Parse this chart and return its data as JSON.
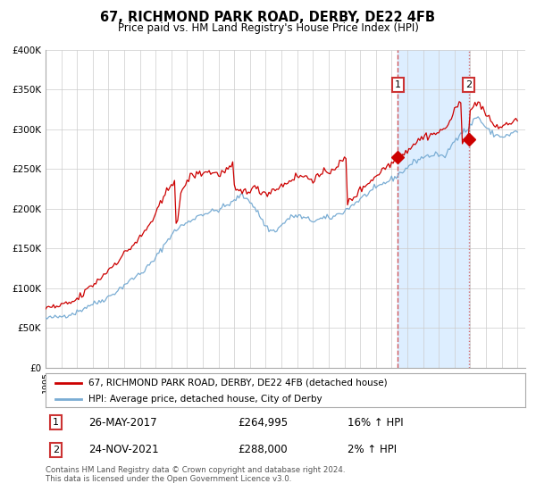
{
  "title": "67, RICHMOND PARK ROAD, DERBY, DE22 4FB",
  "subtitle": "Price paid vs. HM Land Registry's House Price Index (HPI)",
  "legend_line1": "67, RICHMOND PARK ROAD, DERBY, DE22 4FB (detached house)",
  "legend_line2": "HPI: Average price, detached house, City of Derby",
  "footer": "Contains HM Land Registry data © Crown copyright and database right 2024.\nThis data is licensed under the Open Government Licence v3.0.",
  "sale1_date": "26-MAY-2017",
  "sale1_price": "£264,995",
  "sale1_hpi": "16% ↑ HPI",
  "sale1_year": 2017.4,
  "sale1_value": 264995,
  "sale2_date": "24-NOV-2021",
  "sale2_price": "£288,000",
  "sale2_hpi": "2% ↑ HPI",
  "sale2_year": 2021.9,
  "sale2_value": 288000,
  "ylim": [
    0,
    400000
  ],
  "xlim_start": 1995.0,
  "xlim_end": 2025.5,
  "red_color": "#cc0000",
  "blue_color": "#7aadd4",
  "highlight_color": "#ddeeff",
  "grid_color": "#cccccc",
  "background_color": "#ffffff",
  "sale_box_color": "#cc3333",
  "hpi_months": [
    1995.0,
    1995.1,
    1995.2,
    1995.3,
    1995.4,
    1995.5,
    1995.6,
    1995.7,
    1995.8,
    1995.9,
    1996.0,
    1996.1,
    1996.2,
    1996.3,
    1996.4,
    1996.5,
    1996.6,
    1996.7,
    1996.8,
    1996.9,
    1997.0,
    1997.1,
    1997.2,
    1997.3,
    1997.4,
    1997.5,
    1997.6,
    1997.7,
    1997.8,
    1997.9,
    1998.0,
    1998.1,
    1998.2,
    1998.3,
    1998.4,
    1998.5,
    1998.6,
    1998.7,
    1998.8,
    1998.9,
    1999.0,
    1999.1,
    1999.2,
    1999.3,
    1999.4,
    1999.5,
    1999.6,
    1999.7,
    1999.8,
    1999.9,
    2000.0,
    2000.1,
    2000.2,
    2000.3,
    2000.4,
    2000.5,
    2000.6,
    2000.7,
    2000.8,
    2000.9,
    2001.0,
    2001.1,
    2001.2,
    2001.3,
    2001.4,
    2001.5,
    2001.6,
    2001.7,
    2001.8,
    2001.9,
    2002.0,
    2002.1,
    2002.2,
    2002.3,
    2002.4,
    2002.5,
    2002.6,
    2002.7,
    2002.8,
    2002.9,
    2003.0,
    2003.1,
    2003.2,
    2003.3,
    2003.4,
    2003.5,
    2003.6,
    2003.7,
    2003.8,
    2003.9,
    2004.0,
    2004.1,
    2004.2,
    2004.3,
    2004.4,
    2004.5,
    2004.6,
    2004.7,
    2004.8,
    2004.9,
    2005.0,
    2005.1,
    2005.2,
    2005.3,
    2005.4,
    2005.5,
    2005.6,
    2005.7,
    2005.8,
    2005.9,
    2006.0,
    2006.1,
    2006.2,
    2006.3,
    2006.4,
    2006.5,
    2006.6,
    2006.7,
    2006.8,
    2006.9,
    2007.0,
    2007.1,
    2007.2,
    2007.3,
    2007.4,
    2007.5,
    2007.6,
    2007.7,
    2007.8,
    2007.9,
    2008.0,
    2008.1,
    2008.2,
    2008.3,
    2008.4,
    2008.5,
    2008.6,
    2008.7,
    2008.8,
    2008.9,
    2009.0,
    2009.1,
    2009.2,
    2009.3,
    2009.4,
    2009.5,
    2009.6,
    2009.7,
    2009.8,
    2009.9,
    2010.0,
    2010.1,
    2010.2,
    2010.3,
    2010.4,
    2010.5,
    2010.6,
    2010.7,
    2010.8,
    2010.9,
    2011.0,
    2011.1,
    2011.2,
    2011.3,
    2011.4,
    2011.5,
    2011.6,
    2011.7,
    2011.8,
    2011.9,
    2012.0,
    2012.1,
    2012.2,
    2012.3,
    2012.4,
    2012.5,
    2012.6,
    2012.7,
    2012.8,
    2012.9,
    2013.0,
    2013.1,
    2013.2,
    2013.3,
    2013.4,
    2013.5,
    2013.6,
    2013.7,
    2013.8,
    2013.9,
    2014.0,
    2014.1,
    2014.2,
    2014.3,
    2014.4,
    2014.5,
    2014.6,
    2014.7,
    2014.8,
    2014.9,
    2015.0,
    2015.1,
    2015.2,
    2015.3,
    2015.4,
    2015.5,
    2015.6,
    2015.7,
    2015.8,
    2015.9,
    2016.0,
    2016.1,
    2016.2,
    2016.3,
    2016.4,
    2016.5,
    2016.6,
    2016.7,
    2016.8,
    2016.9,
    2017.0,
    2017.1,
    2017.2,
    2017.3,
    2017.4,
    2017.5,
    2017.6,
    2017.7,
    2017.8,
    2017.9,
    2018.0,
    2018.1,
    2018.2,
    2018.3,
    2018.4,
    2018.5,
    2018.6,
    2018.7,
    2018.8,
    2018.9,
    2019.0,
    2019.1,
    2019.2,
    2019.3,
    2019.4,
    2019.5,
    2019.6,
    2019.7,
    2019.8,
    2019.9,
    2020.0,
    2020.1,
    2020.2,
    2020.3,
    2020.4,
    2020.5,
    2020.6,
    2020.7,
    2020.8,
    2020.9,
    2021.0,
    2021.1,
    2021.2,
    2021.3,
    2021.4,
    2021.5,
    2021.6,
    2021.7,
    2021.8,
    2021.9,
    2022.0,
    2022.1,
    2022.2,
    2022.3,
    2022.4,
    2022.5,
    2022.6,
    2022.7,
    2022.8,
    2022.9,
    2023.0,
    2023.1,
    2023.2,
    2023.3,
    2023.4,
    2023.5,
    2023.6,
    2023.7,
    2023.8,
    2023.9,
    2024.0,
    2024.1,
    2024.2,
    2024.3,
    2024.4,
    2024.5,
    2024.6,
    2024.7,
    2024.8,
    2024.9,
    2025.0
  ],
  "hpi_base": [
    62000,
    61500,
    62500,
    62000,
    63000,
    63500,
    63000,
    62500,
    63500,
    64000,
    64500,
    65000,
    65500,
    66000,
    66500,
    67000,
    67500,
    68000,
    68500,
    69000,
    70000,
    71000,
    72000,
    73000,
    74500,
    75500,
    76500,
    77500,
    78500,
    79500,
    80000,
    80500,
    81000,
    82000,
    83000,
    84000,
    85000,
    86000,
    87000,
    88000,
    89000,
    90000,
    91500,
    93000,
    94500,
    96000,
    97500,
    99000,
    100500,
    102000,
    104000,
    106000,
    107000,
    108000,
    109500,
    111000,
    112500,
    114000,
    115500,
    117000,
    118000,
    119500,
    121000,
    123000,
    125000,
    127000,
    129000,
    131000,
    133000,
    135000,
    138000,
    141000,
    144000,
    147000,
    150000,
    153000,
    156000,
    159000,
    162000,
    165000,
    167000,
    169000,
    171000,
    173000,
    175000,
    177000,
    178000,
    179000,
    180000,
    181000,
    182000,
    183000,
    184500,
    186000,
    187500,
    189000,
    190000,
    191000,
    192000,
    193000,
    193500,
    194000,
    194500,
    195000,
    195500,
    196000,
    196500,
    197000,
    197500,
    198000,
    199000,
    200000,
    201000,
    202000,
    203000,
    204000,
    205000,
    206000,
    207000,
    208000,
    210000,
    212000,
    214000,
    216000,
    217000,
    216000,
    215000,
    214000,
    213000,
    212000,
    210000,
    207000,
    204000,
    201000,
    198000,
    195000,
    192000,
    188000,
    185000,
    181000,
    178000,
    176000,
    174000,
    173000,
    172000,
    172000,
    173000,
    174000,
    175000,
    177000,
    179000,
    181000,
    183000,
    185000,
    187000,
    188000,
    189000,
    190000,
    191000,
    191000,
    191000,
    191000,
    190000,
    189000,
    188000,
    188000,
    187000,
    186500,
    186000,
    185500,
    185000,
    185000,
    185500,
    186000,
    186500,
    187000,
    187500,
    188000,
    188000,
    188000,
    188000,
    188500,
    189000,
    190000,
    191000,
    192000,
    193000,
    194000,
    195000,
    196000,
    197000,
    198500,
    200000,
    201500,
    203000,
    204500,
    206000,
    207500,
    209000,
    210500,
    212000,
    213500,
    215000,
    216500,
    218000,
    219500,
    221000,
    222500,
    223000,
    224000,
    225000,
    226500,
    228000,
    229500,
    231000,
    232000,
    233000,
    234000,
    235000,
    236000,
    237000,
    238000,
    239500,
    241000,
    242500,
    244000,
    245500,
    247000,
    248500,
    250000,
    252000,
    254000,
    255500,
    257000,
    258500,
    260000,
    261000,
    262000,
    263000,
    264000,
    265000,
    265500,
    266000,
    266500,
    267000,
    267000,
    267500,
    268000,
    268500,
    269000,
    268000,
    266000,
    264000,
    264500,
    267000,
    270000,
    273000,
    276000,
    279000,
    282000,
    286000,
    289000,
    292000,
    294000,
    296000,
    297000,
    298000,
    299000,
    299500,
    300000,
    304000,
    308000,
    311000,
    314000,
    316000,
    315000,
    313000,
    310000,
    307000,
    305000,
    302000,
    300000,
    298000,
    296000,
    295000,
    294000,
    293000,
    292500,
    292000,
    291500,
    291000,
    291000,
    291500,
    292000,
    292500,
    293000,
    294000,
    295000,
    296000,
    297000,
    298000
  ],
  "price_base": [
    75000,
    74500,
    75500,
    76000,
    75500,
    76000,
    76500,
    76000,
    77000,
    77500,
    78000,
    78500,
    79000,
    79500,
    80000,
    80500,
    81500,
    82500,
    83500,
    84500,
    86000,
    87500,
    89000,
    91000,
    93000,
    95000,
    97000,
    99000,
    101000,
    103000,
    104000,
    105500,
    107000,
    109000,
    111000,
    113000,
    115000,
    117000,
    119000,
    121000,
    123000,
    125000,
    127000,
    129000,
    131000,
    133000,
    135000,
    137000,
    139000,
    141000,
    143000,
    145000,
    147000,
    149000,
    151000,
    153000,
    155000,
    157000,
    159000,
    161000,
    163000,
    165500,
    168000,
    171000,
    174000,
    177000,
    180000,
    183000,
    186000,
    189000,
    193000,
    197000,
    201000,
    205000,
    209000,
    213000,
    217000,
    221000,
    225000,
    229000,
    232000,
    234500,
    237000,
    183500,
    185000,
    202000,
    215000,
    222000,
    228500,
    232000,
    235000,
    237500,
    240000,
    241500,
    242500,
    243000,
    243500,
    244000,
    244500,
    245000,
    245500,
    246000,
    246500,
    247000,
    246500,
    246000,
    245500,
    245000,
    244500,
    244000,
    244000,
    244500,
    245000,
    246000,
    247000,
    248000,
    249500,
    251000,
    252500,
    254000,
    226000,
    224000,
    222000,
    221000,
    221000,
    221500,
    222000,
    222500,
    223000,
    224000,
    225000,
    225500,
    226000,
    225500,
    225000,
    224000,
    223000,
    222000,
    221000,
    220500,
    220000,
    220500,
    221000,
    222000,
    223000,
    224000,
    225000,
    226000,
    227000,
    228000,
    229000,
    230000,
    231000,
    232500,
    234000,
    235500,
    237000,
    238000,
    239000,
    240000,
    240500,
    241000,
    241500,
    241000,
    240500,
    240000,
    239500,
    239000,
    238500,
    238000,
    238000,
    238500,
    239000,
    240000,
    241000,
    242000,
    243000,
    244000,
    245000,
    246000,
    247000,
    248000,
    249500,
    251000,
    252500,
    254000,
    255500,
    257000,
    258500,
    260000,
    261500,
    263000,
    207000,
    209000,
    211000,
    213000,
    215000,
    217000,
    219000,
    221000,
    223000,
    225000,
    227000,
    229000,
    231000,
    233000,
    234500,
    236000,
    237500,
    239000,
    241000,
    243000,
    245000,
    247000,
    249000,
    250500,
    252000,
    253500,
    255000,
    256000,
    257500,
    259000,
    260500,
    262000,
    263500,
    265000,
    266500,
    268000,
    270000,
    272000,
    274000,
    276000,
    278000,
    280000,
    281500,
    283000,
    284500,
    286000,
    287500,
    289000,
    290000,
    291000,
    292000,
    292500,
    293000,
    293500,
    294000,
    294500,
    295000,
    295500,
    296000,
    297000,
    298500,
    300000,
    302000,
    304000,
    307000,
    310000,
    314000,
    318000,
    322000,
    326000,
    329000,
    332000,
    334500,
    287000,
    289000,
    291000,
    293000,
    295000,
    320000,
    325000,
    329000,
    332000,
    335000,
    334000,
    332000,
    329000,
    326000,
    322000,
    318000,
    315000,
    312000,
    310000,
    308000,
    306000,
    305000,
    304000,
    303000,
    303000,
    303500,
    304000,
    305000,
    306000,
    307000,
    308000,
    309000,
    310000,
    311000,
    312000,
    313000
  ]
}
